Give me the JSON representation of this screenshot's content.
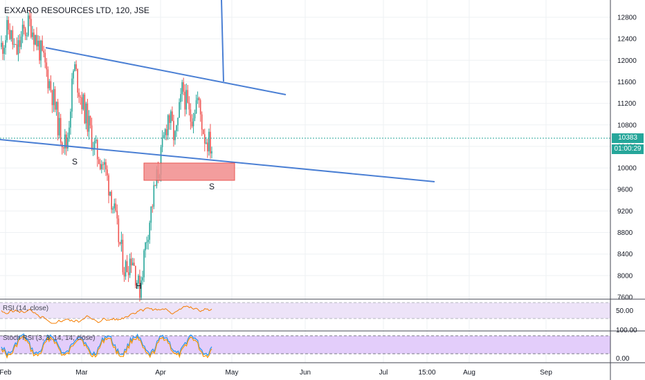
{
  "title": "EXXARO RESOURCES LTD, 120, JSE",
  "price_axis": {
    "ticks": [
      "12800",
      "12400",
      "12000",
      "11600",
      "11200",
      "10800",
      "10400",
      "10000",
      "9600",
      "9200",
      "8800",
      "8400",
      "8000",
      "7600"
    ]
  },
  "time_axis": {
    "ticks": [
      "Feb",
      "Mar",
      "Apr",
      "May",
      "Jun",
      "Jul",
      "15:00",
      "Aug",
      "Sep"
    ]
  },
  "last_price": "10383",
  "countdown": "01:00:29",
  "annotations": {
    "left_shoulder": "S",
    "right_shoulder": "S",
    "head": "H"
  },
  "rsi": {
    "label": "RSI (14, close)",
    "ticks": [
      "50.00"
    ]
  },
  "stoch": {
    "label": "Stoch RSI (3, 3, 14, 14, close)",
    "ticks": [
      "100.00",
      "0.00"
    ]
  },
  "colors": {
    "up": "#26a69a",
    "down": "#ef5350",
    "trendline": "#4a7fd4",
    "zone_fill": "#f28c8c",
    "zone_border": "#e53935",
    "rsi_line": "#f57c00",
    "rsi_band": "#ede3f8",
    "stoch_k": "#2196f3",
    "stoch_d": "#ff9800",
    "stoch_band": "#e3cdfa",
    "grid": "#eef0f3",
    "last_price_line": "#26a69a"
  },
  "chart_data": {
    "type": "candlestick",
    "title": "EXXARO RESOURCES LTD, 120, JSE",
    "interval": "120",
    "y_range": [
      7400,
      13000
    ],
    "price_ticks": [
      12800,
      12400,
      12000,
      11600,
      11200,
      10800,
      10400,
      10000,
      9600,
      9200,
      8800,
      8400,
      8000,
      7600
    ],
    "x_labels": [
      "Feb",
      "Mar",
      "Apr",
      "May",
      "Jun",
      "Jul",
      "15:00",
      "Aug",
      "Sep"
    ],
    "last_price": 10383,
    "close_path": [
      [
        "Feb",
        12250
      ],
      [
        "Feb",
        12600
      ],
      [
        "Feb",
        12100
      ],
      [
        "Feb",
        12500
      ],
      [
        "Feb",
        12700
      ],
      [
        "Feb",
        12300
      ],
      [
        "Feb",
        11900
      ],
      [
        "Feb",
        11400
      ],
      [
        "Feb",
        10700
      ],
      [
        "Feb",
        10400
      ],
      [
        "Mar",
        11900
      ],
      [
        "Mar",
        11300
      ],
      [
        "Mar",
        10800
      ],
      [
        "Mar",
        10300
      ],
      [
        "Mar",
        10100
      ],
      [
        "Mar",
        9600
      ],
      [
        "Mar",
        8800
      ],
      [
        "Mar",
        8100
      ],
      [
        "Mar",
        8400
      ],
      [
        "Mar",
        7700
      ],
      [
        "Mar",
        8700
      ],
      [
        "Mar",
        9500
      ],
      [
        "Apr",
        10200
      ],
      [
        "Apr",
        11000
      ],
      [
        "Apr",
        10500
      ],
      [
        "Apr",
        11500
      ],
      [
        "Apr",
        10900
      ],
      [
        "Apr",
        11300
      ],
      [
        "Apr",
        10600
      ],
      [
        "Apr",
        10383
      ]
    ],
    "pattern": "head and shoulders",
    "drawings": {
      "neckline_upper": [
        [
          "Feb",
          12200
        ],
        [
          "May",
          11250
        ]
      ],
      "neckline_lower": [
        [
          "Feb",
          10300
        ],
        [
          "Jun",
          9520
        ]
      ],
      "demand_zone": {
        "price_top": 9880,
        "price_bottom": 9560
      }
    },
    "rsi": {
      "label": "RSI (14, close)",
      "level": 50
    },
    "stoch_rsi": {
      "label": "Stoch RSI (3, 3, 14, 14, close)",
      "upper": 80,
      "lower": 20
    }
  }
}
